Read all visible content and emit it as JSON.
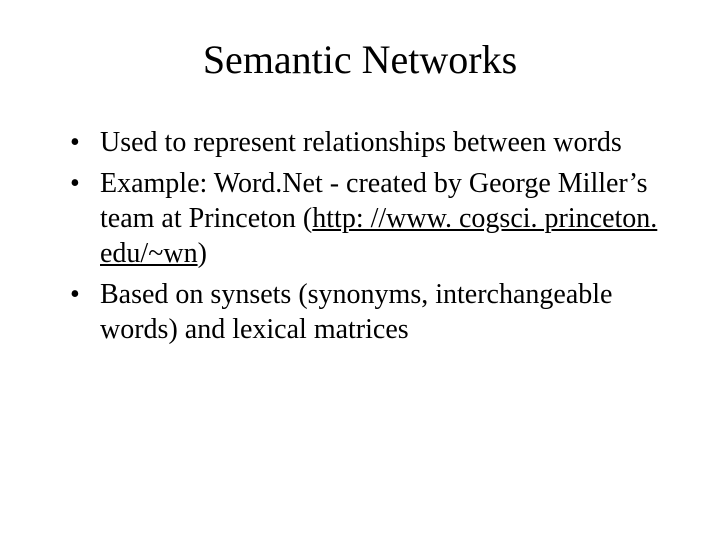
{
  "title": "Semantic Networks",
  "bullets": [
    {
      "prefix": "Used to represent relationships between words",
      "link": "",
      "suffix": ""
    },
    {
      "prefix": "Example: Word.Net - created by George Miller’s team at Princeton (",
      "link": "http: //www. cogsci. princeton. edu/~wn",
      "suffix": ")"
    },
    {
      "prefix": "Based on synsets (synonyms, interchangeable words) and lexical matrices",
      "link": "",
      "suffix": ""
    }
  ],
  "colors": {
    "background": "#ffffff",
    "text": "#000000"
  },
  "typography": {
    "title_fontsize": 40,
    "body_fontsize": 28,
    "font_family": "Times New Roman"
  }
}
